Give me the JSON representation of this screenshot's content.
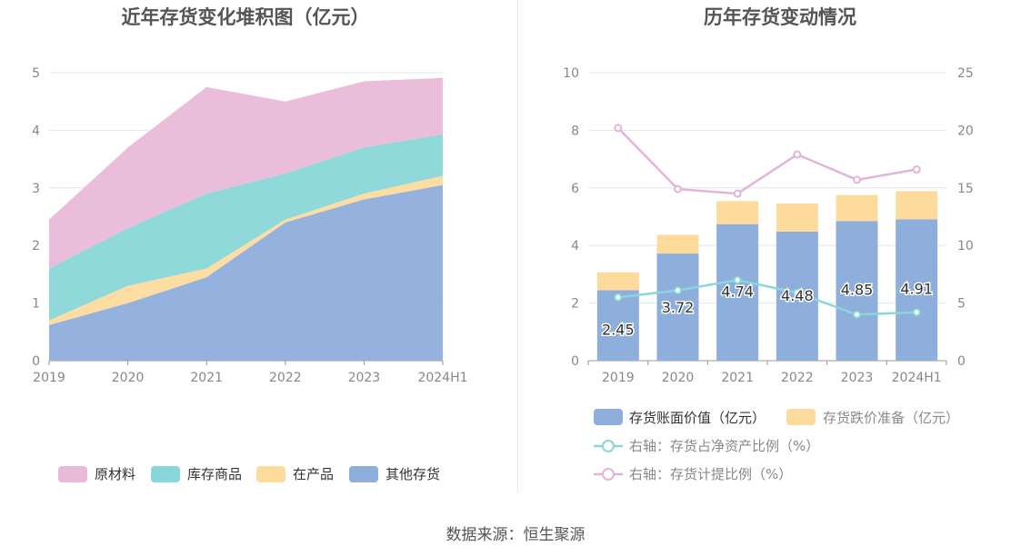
{
  "source_text": "数据来源：恒生聚源",
  "chart_data": [
    {
      "type": "area",
      "title": "近年存货变化堆积图（亿元）",
      "categories": [
        "2019",
        "2020",
        "2021",
        "2022",
        "2023",
        "2024H1"
      ],
      "ylim": [
        0,
        5
      ],
      "yticks": [
        "0",
        "1",
        "2",
        "3",
        "4",
        "5"
      ],
      "stacked": true,
      "grid": true,
      "legend_position": "bottom",
      "series": [
        {
          "name": "其他存货",
          "color": "#8eaedb",
          "values": [
            0.62,
            1.0,
            1.45,
            2.4,
            2.8,
            3.05
          ]
        },
        {
          "name": "在产品",
          "color": "#fddb9c",
          "values": [
            0.08,
            0.3,
            0.15,
            0.05,
            0.1,
            0.16
          ]
        },
        {
          "name": "库存商品",
          "color": "#89d7d9",
          "values": [
            0.9,
            1.0,
            1.3,
            0.8,
            0.8,
            0.72
          ]
        },
        {
          "name": "原材料",
          "color": "#e9b9d8",
          "values": [
            0.85,
            1.4,
            1.85,
            1.25,
            1.15,
            0.98
          ]
        }
      ]
    },
    {
      "type": "bar",
      "title": "历年存货变动情况",
      "categories": [
        "2019",
        "2020",
        "2021",
        "2022",
        "2023",
        "2024H1"
      ],
      "ylim": [
        0,
        10
      ],
      "yticks": [
        "0",
        "2",
        "4",
        "6",
        "8",
        "10"
      ],
      "y2lim": [
        0,
        25
      ],
      "y2ticks": [
        "0",
        "5",
        "10",
        "15",
        "20",
        "25"
      ],
      "stacked": true,
      "grid": true,
      "legend_position": "bottom",
      "bar_series": [
        {
          "name": "存货账面价值（亿元）",
          "color": "#8eaedb",
          "values": [
            2.45,
            3.72,
            4.74,
            4.48,
            4.85,
            4.91
          ],
          "labels": [
            "2.45",
            "3.72",
            "4.74",
            "4.48",
            "4.85",
            "4.91"
          ]
        },
        {
          "name": "存货跌价准备（亿元）",
          "color": "#fddb9c",
          "values": [
            0.62,
            0.65,
            0.8,
            0.98,
            0.9,
            0.98
          ]
        }
      ],
      "line_series": [
        {
          "name": "右轴：存货占净资产比例（%）",
          "color": "#89d7d9",
          "values": [
            5.5,
            6.1,
            7.0,
            5.9,
            4.0,
            4.2
          ]
        },
        {
          "name": "右轴：存货计提比例（%）",
          "color": "#e2b4dc",
          "values": [
            20.2,
            14.9,
            14.5,
            17.9,
            15.7,
            16.6
          ]
        }
      ]
    }
  ]
}
